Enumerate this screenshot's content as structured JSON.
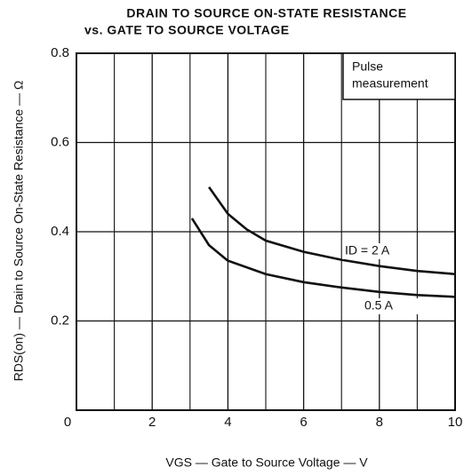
{
  "chart_data": {
    "type": "line",
    "title": [
      "DRAIN TO SOURCE ON-STATE RESISTANCE",
      "vs. GATE TO SOURCE VOLTAGE"
    ],
    "xlabel": "VGS — Gate to Source Voltage — V",
    "ylabel": "RDS(on) — Drain to Source On-State Resistance — Ω",
    "annotation": [
      "Pulse",
      "measurement"
    ],
    "xlim": [
      0,
      10
    ],
    "ylim": [
      0,
      0.8
    ],
    "xticks": [
      0,
      2,
      4,
      6,
      8,
      10
    ],
    "x_minor_ticks": [
      1,
      3,
      5,
      7,
      9
    ],
    "yticks": [
      0.2,
      0.4,
      0.6,
      0.8
    ],
    "grid": true,
    "series": [
      {
        "name": "ID = 2 A",
        "color": "#111111",
        "x": [
          3.5,
          4,
          4.5,
          5,
          6,
          7,
          8,
          9,
          10
        ],
        "values": [
          0.5,
          0.44,
          0.405,
          0.38,
          0.355,
          0.337,
          0.323,
          0.312,
          0.305
        ]
      },
      {
        "name": "0.5 A",
        "color": "#111111",
        "x": [
          3.05,
          3.5,
          4,
          5,
          6,
          7,
          8,
          9,
          10
        ],
        "values": [
          0.43,
          0.37,
          0.335,
          0.305,
          0.287,
          0.275,
          0.265,
          0.258,
          0.254
        ]
      }
    ]
  }
}
